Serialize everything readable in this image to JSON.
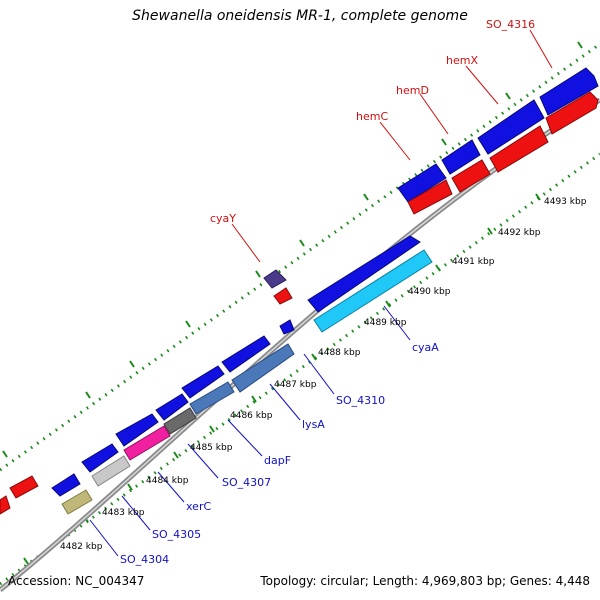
{
  "title": "Shewanella oneidensis MR-1, complete genome",
  "footer": {
    "accession": "Accession: NC_004347",
    "summary": "Topology: circular; Length: 4,969,803 bp; Genes: 4,448"
  },
  "colors": {
    "forward_gene": "#1010e0",
    "reverse_gene": "#ee1111",
    "backbone": "#8a8a8a",
    "tick": "#1a8a1a",
    "label_forward": "#1010c8",
    "label_reverse": "#d01010"
  },
  "genes": {
    "SO_4316": "SO_4316",
    "hemX": "hemX",
    "hemD": "hemD",
    "hemC": "hemC",
    "cyaY": "cyaY",
    "cyaA": "cyaA",
    "SO_4310": "SO_4310",
    "lysA": "lysA",
    "dapF": "dapF",
    "SO_4307": "SO_4307",
    "xerC": "xerC",
    "SO_4305": "SO_4305",
    "SO_4304": "SO_4304"
  },
  "kbp_ticks": [
    "4482 kbp",
    "4483 kbp",
    "4484 kbp",
    "4485 kbp",
    "4486 kbp",
    "4487 kbp",
    "4488 kbp",
    "4489 kbp",
    "4490 kbp",
    "4491 kbp",
    "4492 kbp",
    "4493 kbp"
  ]
}
